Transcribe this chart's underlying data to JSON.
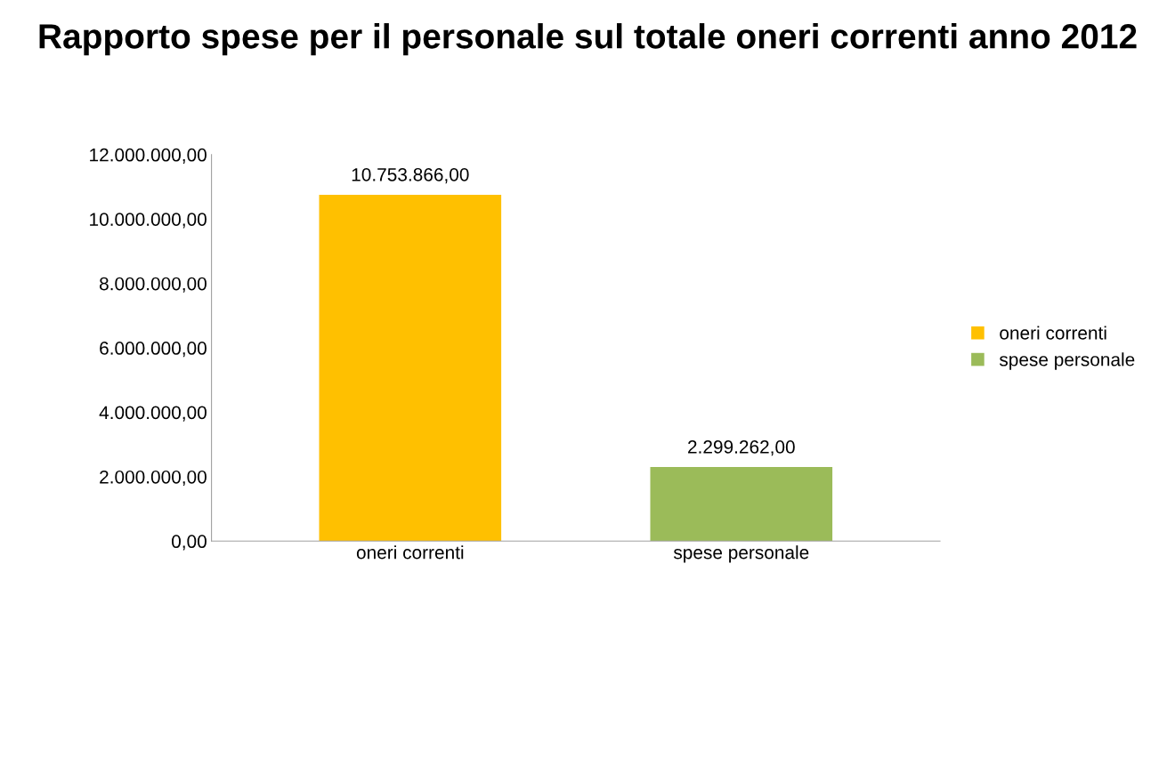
{
  "chart_data": {
    "type": "bar",
    "title": "Rapporto spese per il personale sul totale oneri correnti anno 2012",
    "categories": [
      "oneri correnti",
      "spese personale"
    ],
    "series": [
      {
        "name": "oneri correnti",
        "color": "#ffc000",
        "values": [
          10753866,
          null
        ],
        "value_labels": [
          "10.753.866,00",
          null
        ]
      },
      {
        "name": "spese personale",
        "color": "#9bbb59",
        "values": [
          null,
          2299262
        ],
        "value_labels": [
          null,
          "2.299.262,00"
        ]
      }
    ],
    "ylim": [
      0,
      12000000
    ],
    "yticks": [
      {
        "value": 0,
        "label": "0,00"
      },
      {
        "value": 2000000,
        "label": "2.000.000,00"
      },
      {
        "value": 4000000,
        "label": "4.000.000,00"
      },
      {
        "value": 6000000,
        "label": "6.000.000,00"
      },
      {
        "value": 8000000,
        "label": "8.000.000,00"
      },
      {
        "value": 10000000,
        "label": "10.000.000,00"
      },
      {
        "value": 12000000,
        "label": "12.000.000,00"
      }
    ],
    "grid": false,
    "legend": "right"
  }
}
